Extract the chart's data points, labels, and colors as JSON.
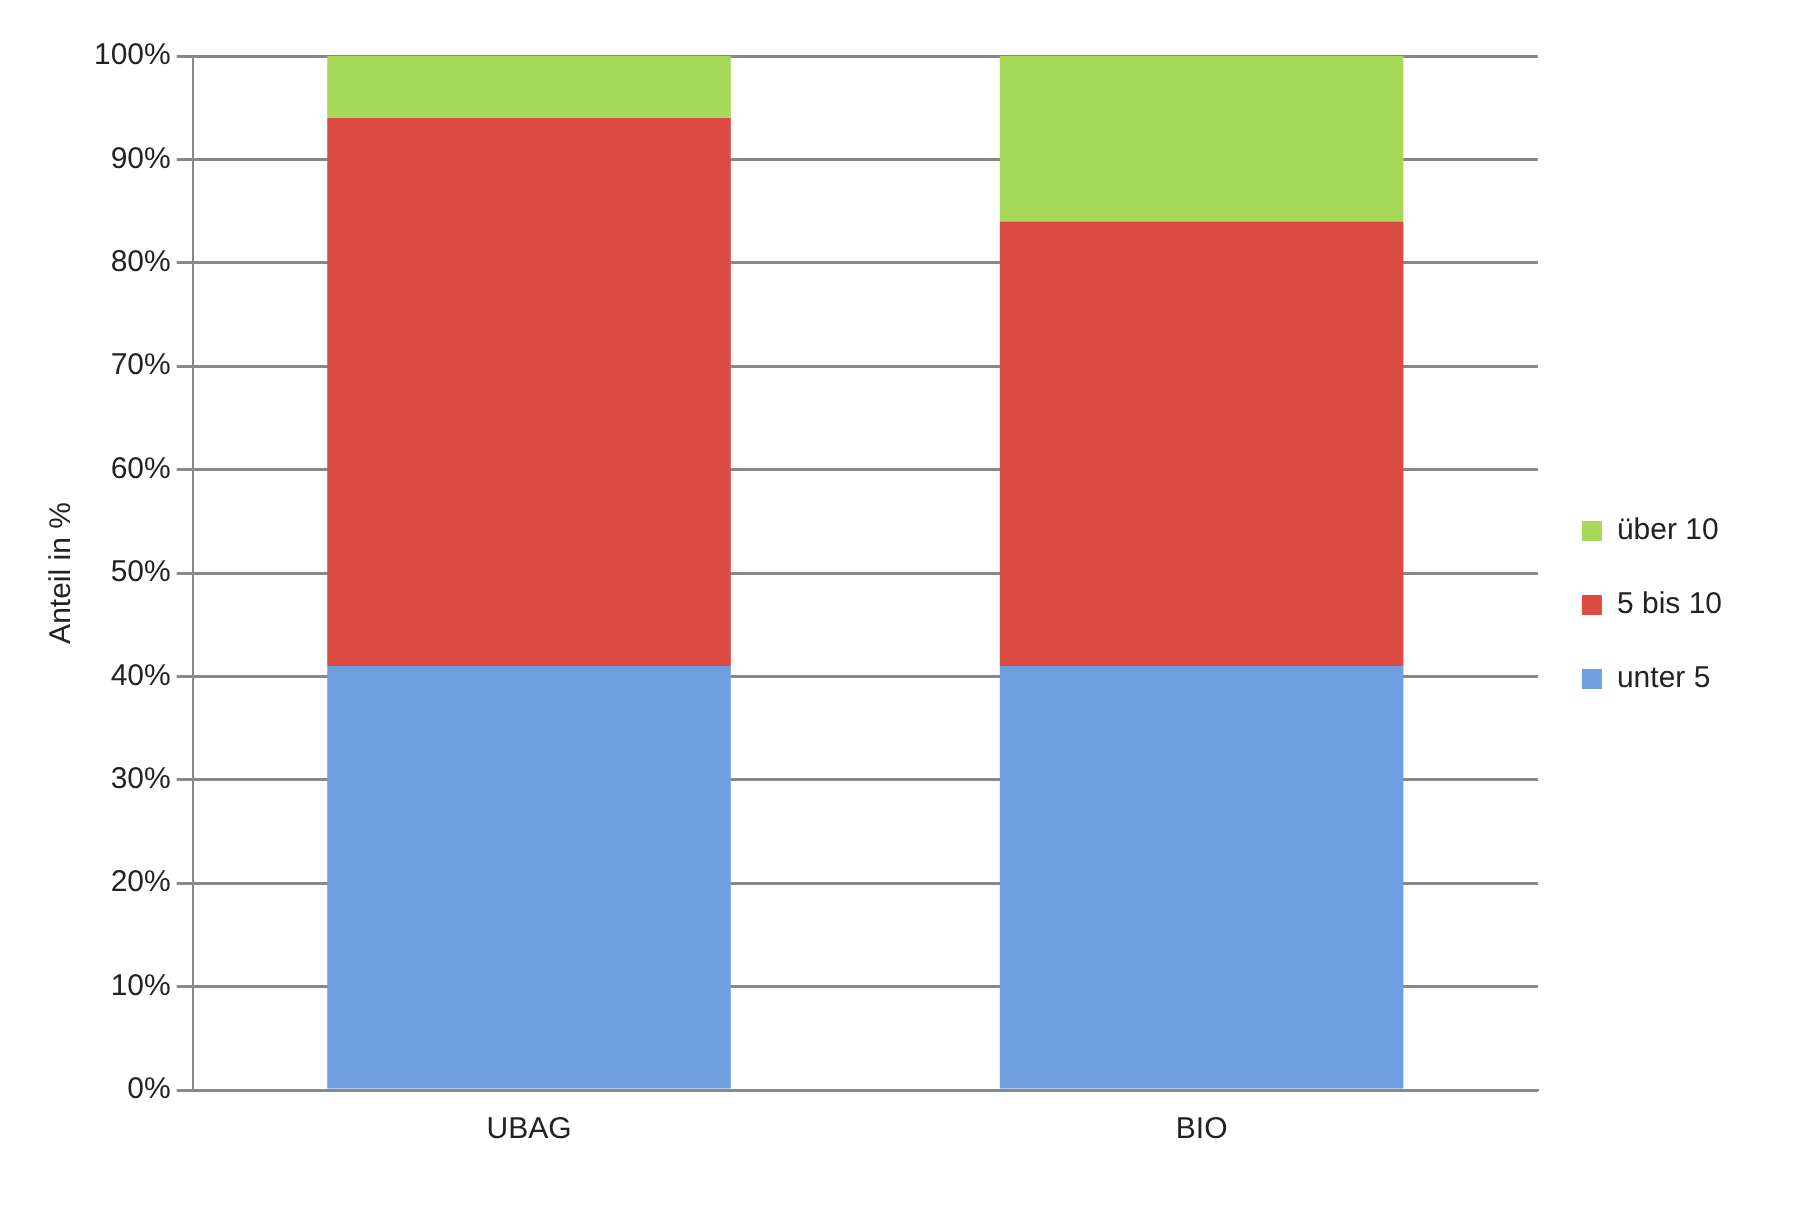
{
  "chart_data": {
    "type": "bar",
    "stacked": true,
    "ylabel": "Anteil in %",
    "categories": [
      "UBAG",
      "BIO"
    ],
    "series": [
      {
        "name": "unter 5",
        "color": "#6f9fe0",
        "values": [
          41,
          41
        ]
      },
      {
        "name": "5 bis 10",
        "color": "#dc4a44",
        "values": [
          53,
          43
        ]
      },
      {
        "name": "über 10",
        "color": "#a6d85a",
        "values": [
          6,
          16
        ]
      }
    ],
    "ylim": [
      0,
      100
    ],
    "yticks": [
      {
        "value": 0,
        "label": "0%"
      },
      {
        "value": 10,
        "label": "10%"
      },
      {
        "value": 20,
        "label": "20%"
      },
      {
        "value": 30,
        "label": "30%"
      },
      {
        "value": 40,
        "label": "40%"
      },
      {
        "value": 50,
        "label": "50%"
      },
      {
        "value": 60,
        "label": "60%"
      },
      {
        "value": 70,
        "label": "70%"
      },
      {
        "value": 80,
        "label": "80%"
      },
      {
        "value": 90,
        "label": "90%"
      },
      {
        "value": 100,
        "label": "100%"
      }
    ],
    "grid": "y",
    "legend": "right"
  }
}
